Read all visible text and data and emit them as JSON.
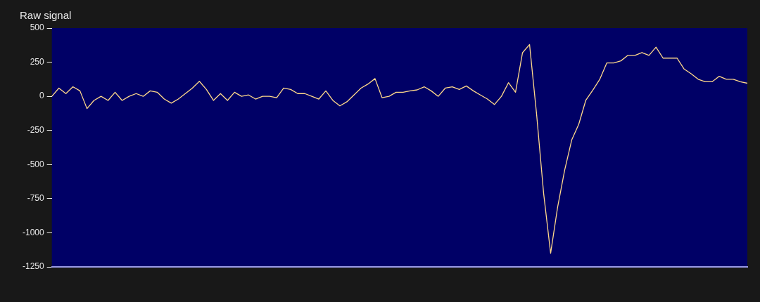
{
  "chart_data": {
    "type": "line",
    "title": "Raw signal",
    "categories": [
      null,
      null,
      null,
      null,
      null,
      null,
      null,
      null,
      null,
      null,
      null,
      null,
      null,
      null,
      null,
      null,
      null,
      null,
      null,
      null,
      null,
      null,
      null,
      null,
      null,
      null,
      null,
      null,
      null,
      null,
      null,
      null,
      null,
      null,
      null,
      null,
      null,
      null,
      null,
      null,
      null,
      null,
      null,
      null,
      null,
      null,
      null,
      null,
      null,
      null,
      null,
      null,
      null,
      null,
      null,
      null,
      null,
      null,
      null,
      null,
      null,
      null,
      null,
      null,
      null,
      null,
      null,
      null,
      null,
      null,
      null,
      null,
      null,
      null,
      null,
      null,
      null,
      null,
      null,
      null,
      null,
      null,
      null,
      null,
      null,
      null,
      null,
      null,
      null,
      null,
      null,
      null,
      null,
      null,
      null,
      null,
      null,
      null,
      null,
      null
    ],
    "series": [
      {
        "color": "#ffd98a",
        "values": [
          0,
          60,
          20,
          70,
          40,
          -90,
          -30,
          0,
          -30,
          30,
          -30,
          0,
          20,
          0,
          40,
          30,
          -20,
          -50,
          -20,
          20,
          60,
          110,
          50,
          -30,
          20,
          -30,
          30,
          0,
          10,
          -20,
          0,
          0,
          -10,
          60,
          50,
          20,
          20,
          0,
          -20,
          40,
          -30,
          -70,
          -40,
          10,
          60,
          90,
          130,
          -10,
          0,
          30,
          30,
          40,
          47,
          70,
          40,
          0,
          60,
          70,
          50,
          76,
          40,
          10,
          -20,
          -60,
          0,
          100,
          30,
          320,
          380,
          -130,
          -710,
          -1150,
          -810,
          -540,
          -320,
          -205,
          -30,
          45,
          125,
          245,
          245,
          260,
          300,
          300,
          320,
          300,
          360,
          280,
          280,
          280,
          200,
          165,
          125,
          107,
          107,
          147,
          125,
          125,
          107,
          96
        ]
      }
    ],
    "ylim": [
      -1250,
      500
    ],
    "yticks": [
      -1250,
      -1000,
      -750,
      -500,
      -250,
      0,
      250,
      500
    ],
    "tick_labels": "y",
    "marker": "none",
    "line_style": "solid"
  }
}
